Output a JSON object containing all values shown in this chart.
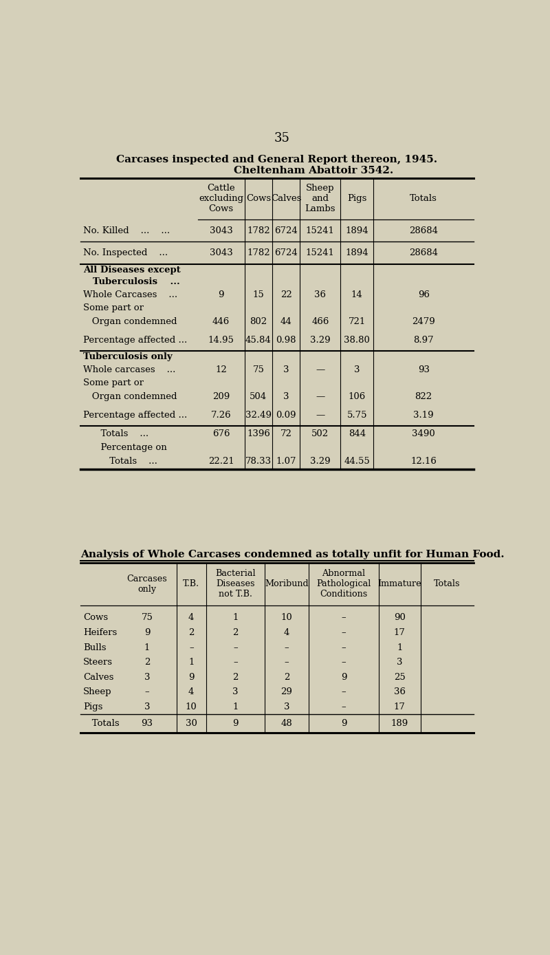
{
  "page_number": "35",
  "title_line1": "Carcases inspected and General Report thereon, 1945.",
  "title_line2": "Cheltenham Abattoir 3542.",
  "bg_color": "#d5d0ba",
  "table1": {
    "col_headers": [
      "Cattle\nexcluding\nCows",
      "Cows",
      "Calves",
      "Sheep\nand\nLambs",
      "Pigs",
      "Totals"
    ],
    "rows": [
      {
        "label": "No. Killed    ...    ...",
        "bold": false,
        "values": [
          "3043",
          "1782",
          "6724",
          "15241",
          "1894",
          "28684"
        ],
        "sep": 1.0
      },
      {
        "label": "No. Inspected    ...",
        "bold": false,
        "values": [
          "3043",
          "1782",
          "6724",
          "15241",
          "1894",
          "28684"
        ],
        "sep": 1.5
      },
      {
        "label": "All Diseases except",
        "bold": true,
        "values": [
          "",
          "",
          "",
          "",
          "",
          ""
        ],
        "sep": 0
      },
      {
        "label": "   Tuberculosis    ...",
        "bold": true,
        "values": [
          "",
          "",
          "",
          "",
          "",
          ""
        ],
        "sep": 0
      },
      {
        "label": "Whole Carcases    ...",
        "bold": false,
        "values": [
          "9",
          "15",
          "22",
          "36",
          "14",
          "96"
        ],
        "sep": 0
      },
      {
        "label": "Some part or",
        "bold": false,
        "values": [
          "",
          "",
          "",
          "",
          "",
          ""
        ],
        "sep": 0
      },
      {
        "label": "   Organ condemned",
        "bold": false,
        "values": [
          "446",
          "802",
          "44",
          "466",
          "721",
          "2479"
        ],
        "sep": 0
      },
      {
        "label": "Percentage affected ...",
        "bold": false,
        "values": [
          "14.95",
          "45.84",
          "0.98",
          "3.29",
          "38.80",
          "8.97"
        ],
        "sep": 1.5
      },
      {
        "label": "Tuberculosis only",
        "bold": true,
        "values": [
          "",
          "",
          "",
          "",
          "",
          ""
        ],
        "sep": 0
      },
      {
        "label": "Whole carcases    ...",
        "bold": false,
        "values": [
          "12",
          "75",
          "3",
          "—",
          "3",
          "93"
        ],
        "sep": 0
      },
      {
        "label": "Some part or",
        "bold": false,
        "values": [
          "",
          "",
          "",
          "",
          "",
          ""
        ],
        "sep": 0
      },
      {
        "label": "   Organ condemned",
        "bold": false,
        "values": [
          "209",
          "504",
          "3",
          "—",
          "106",
          "822"
        ],
        "sep": 0
      },
      {
        "label": "Percentage affected ...",
        "bold": false,
        "values": [
          "7.26",
          "32.49",
          "0.09",
          "—",
          "5.75",
          "3.19"
        ],
        "sep": 1.5
      },
      {
        "label": "      Totals    ...",
        "bold": false,
        "values": [
          "676",
          "1396",
          "72",
          "502",
          "844",
          "3490"
        ],
        "sep": 0
      },
      {
        "label": "      Percentage on",
        "bold": false,
        "values": [
          "",
          "",
          "",
          "",
          "",
          ""
        ],
        "sep": 0
      },
      {
        "label": "         Totals    ...",
        "bold": false,
        "values": [
          "22.21",
          "78.33",
          "1.07",
          "3.29",
          "44.55",
          "12.16"
        ],
        "sep": 2.5
      }
    ]
  },
  "table2_title": "Analysis of Whole Carcases condemned as totally unfit for Human Food.",
  "table2": {
    "col_headers": [
      "Carcases\nonly",
      "T.B.",
      "Bacterial\nDiseases\nnot T.B.",
      "Moribund",
      "Abnormal\nPathological\nConditions",
      "Immature",
      "Totals"
    ],
    "rows": [
      {
        "label": "Cows",
        "values": [
          "75",
          "4",
          "1",
          "10",
          "–",
          "90"
        ]
      },
      {
        "label": "Heifers",
        "values": [
          "9",
          "2",
          "2",
          "4",
          "–",
          "17"
        ]
      },
      {
        "label": "Bulls",
        "values": [
          "1",
          "–",
          "–",
          "–",
          "–",
          "1"
        ]
      },
      {
        "label": "Steers",
        "values": [
          "2",
          "1",
          "–",
          "–",
          "–",
          "3"
        ]
      },
      {
        "label": "Calves",
        "values": [
          "3",
          "9",
          "2",
          "2",
          "9",
          "25"
        ]
      },
      {
        "label": "Sheep",
        "values": [
          "–",
          "4",
          "3",
          "29",
          "–",
          "36"
        ]
      },
      {
        "label": "Pigs",
        "values": [
          "3",
          "10",
          "1",
          "3",
          "–",
          "17"
        ]
      },
      {
        "label": "   Totals",
        "values": [
          "93",
          "30",
          "9",
          "48",
          "9",
          "189"
        ]
      }
    ]
  }
}
